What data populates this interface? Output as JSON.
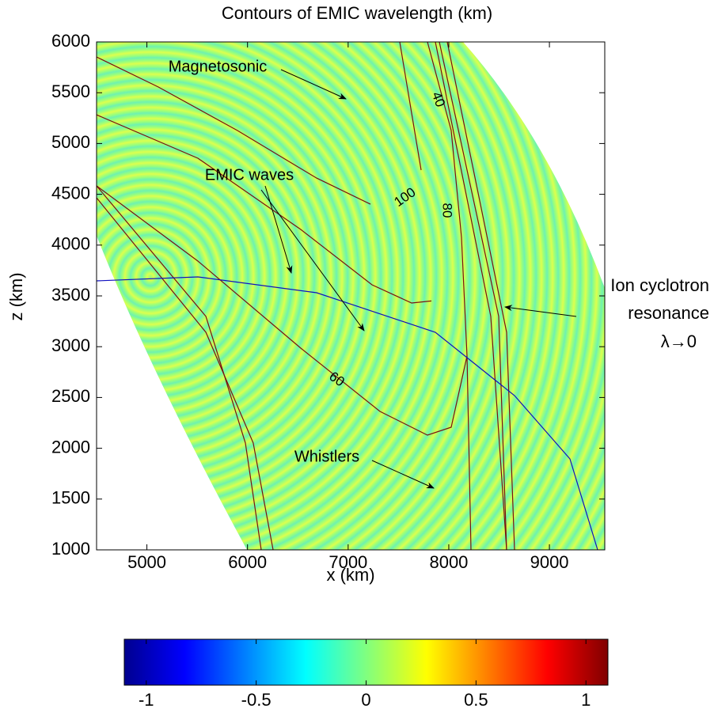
{
  "chart_data": {
    "type": "contour",
    "title": "Contours of EMIC wavelength (km)",
    "x_label": "x (km)",
    "y_label": "z (km)",
    "xlim": [
      4500,
      9550
    ],
    "ylim": [
      1000,
      6000
    ],
    "xticks": [
      5000,
      6000,
      7000,
      8000,
      9000
    ],
    "yticks": [
      1000,
      1500,
      2000,
      2500,
      3000,
      3500,
      4000,
      4500,
      5000,
      5500,
      6000
    ],
    "grid": false,
    "contours": [
      {
        "level": 100,
        "color": "#7a1010",
        "x": [
          4500,
          5114,
          5900,
          6687,
          7222
        ],
        "y": [
          5852,
          5556,
          5128,
          4660,
          4403
        ]
      },
      {
        "color": "#7a1010",
        "x": [
          4500,
          5507,
          6529,
          7237,
          7631,
          7827
        ],
        "y": [
          5283,
          4855,
          4154,
          3609,
          3430,
          3450
        ]
      },
      {
        "level": 80,
        "color": "#7a1010",
        "x": [
          7788,
          8024,
          8126,
          8181,
          8221
        ],
        "y": [
          6000,
          5128,
          4076,
          2908,
          1000
        ]
      },
      {
        "level": 60,
        "color": "#7a1010",
        "x": [
          4500,
          5507,
          6529,
          7316,
          7788,
          8024,
          8181
        ],
        "y": [
          4583,
          3843,
          2986,
          2363,
          2129,
          2207,
          2908
        ]
      },
      {
        "level": 40,
        "color": "#7a1010",
        "x": [
          7867,
          8417,
          8575
        ],
        "y": [
          6000,
          3298,
          1000
        ]
      },
      {
        "color": "#7a1010",
        "x": [
          7906,
          8496,
          8575
        ],
        "y": [
          6000,
          3298,
          1000
        ]
      },
      {
        "color": "#7a1010",
        "x": [
          7985,
          8575,
          8653
        ],
        "y": [
          6000,
          3142,
          1000
        ]
      },
      {
        "color": "#7a1010",
        "x": [
          4500,
          5586,
          5979,
          6136
        ],
        "y": [
          4583,
          3298,
          2052,
          1000
        ]
      },
      {
        "color": "#7a1010",
        "x": [
          4500,
          5586,
          6057,
          6254
        ],
        "y": [
          4466,
          3142,
          2052,
          1000
        ]
      },
      {
        "color": "#7a1010",
        "x": [
          7513,
          7725
        ],
        "y": [
          6000,
          4738
        ]
      },
      {
        "color": "#1010c0",
        "x": [
          4500,
          5507,
          6687,
          7867,
          8653,
          9204,
          9479
        ],
        "y": [
          3648,
          3687,
          3531,
          3142,
          2519,
          1896,
          1000
        ]
      }
    ],
    "annotations": [
      "Magnetosonic",
      "EMIC waves",
      "Whistlers",
      [
        "Ion cyclotron",
        "resonance",
        "λ→0"
      ]
    ],
    "colorbar": {
      "colormap": "jet",
      "clim": [
        -1.1,
        1.1
      ],
      "ticks": [
        -1,
        -0.5,
        0,
        0.5,
        1
      ]
    }
  }
}
